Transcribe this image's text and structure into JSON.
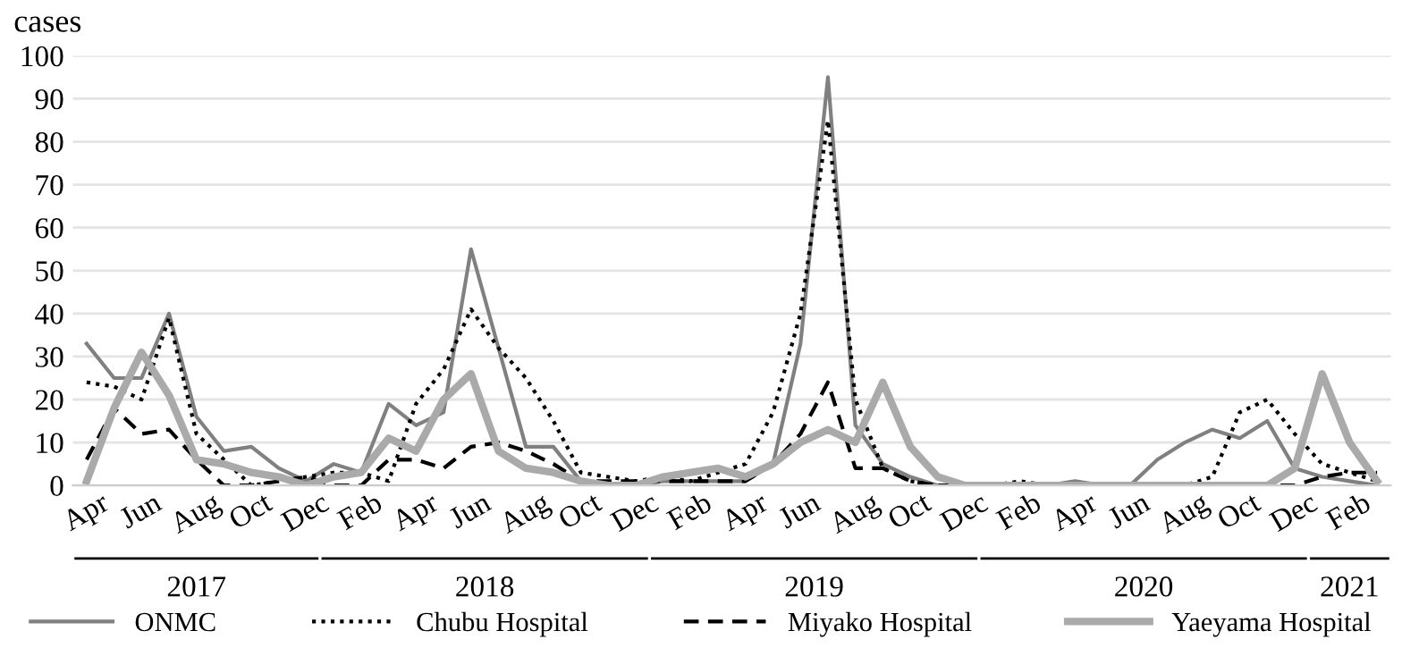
{
  "chart_data": {
    "type": "line",
    "ylabel": "cases",
    "categories": [
      "Apr",
      null,
      "Jun",
      null,
      "Aug",
      null,
      "Oct",
      null,
      "Dec",
      null,
      "Feb",
      null,
      "Apr",
      null,
      "Jun",
      null,
      "Aug",
      null,
      "Oct",
      null,
      "Dec",
      null,
      "Feb",
      null,
      "Apr",
      null,
      "Jun",
      null,
      "Aug",
      null,
      "Oct",
      null,
      "Dec",
      null,
      "Feb",
      null,
      "Apr",
      null,
      "Jun",
      null,
      "Aug",
      null,
      "Oct",
      null,
      "Dec",
      null,
      "Feb",
      null
    ],
    "series": [
      {
        "name": "ONMC",
        "color": "#808080",
        "line_style": "solid",
        "values": [
          33,
          25,
          25,
          40,
          16,
          8,
          9,
          4,
          1,
          5,
          3,
          19,
          14,
          17,
          55,
          32,
          9,
          9,
          1,
          0,
          0,
          1,
          1,
          1,
          1,
          5,
          33,
          95,
          14,
          5,
          2,
          0,
          0,
          0,
          0,
          0,
          1,
          0,
          0,
          6,
          10,
          13,
          11,
          15,
          4,
          2,
          1,
          0
        ]
      },
      {
        "name": "Chubu Hospital",
        "color": "#000000",
        "line_style": "dotted",
        "values": [
          24,
          23,
          20,
          39,
          12,
          6,
          0,
          1,
          2,
          3,
          3,
          1,
          19,
          27,
          41,
          32,
          25,
          15,
          3,
          2,
          1,
          2,
          1,
          3,
          5,
          17,
          40,
          85,
          20,
          4,
          1,
          0,
          0,
          0,
          1,
          0,
          0,
          0,
          0,
          0,
          0,
          2,
          17,
          20,
          12,
          5,
          3,
          1
        ]
      },
      {
        "name": "Miyako Hospital",
        "color": "#000000",
        "line_style": "dashed",
        "values": [
          6,
          18,
          12,
          13,
          6,
          0,
          0,
          1,
          2,
          0,
          0,
          6,
          6,
          4,
          9,
          10,
          8,
          5,
          1,
          1,
          1,
          1,
          1,
          1,
          1,
          5,
          12,
          24,
          4,
          4,
          1,
          0,
          0,
          0,
          0,
          0,
          0,
          0,
          0,
          0,
          0,
          0,
          0,
          0,
          0,
          2,
          3,
          3
        ]
      },
      {
        "name": "Yaeyama Hospital",
        "color": "#aaaaaa",
        "line_style": "solid",
        "values": [
          1,
          18,
          31,
          21,
          6,
          5,
          3,
          2,
          0,
          2,
          3,
          11,
          8,
          20,
          26,
          8,
          4,
          3,
          1,
          0,
          0,
          2,
          3,
          4,
          2,
          5,
          10,
          13,
          10,
          24,
          9,
          2,
          0,
          0,
          0,
          0,
          0,
          0,
          0,
          0,
          0,
          0,
          0,
          0,
          4,
          26,
          10,
          1
        ]
      }
    ],
    "annotations": [
      "2017",
      "2018",
      "2019",
      "2020",
      "2021"
    ],
    "ylim": [
      0,
      100
    ],
    "yticks": [
      0,
      10,
      20,
      30,
      40,
      50,
      60,
      70,
      80,
      90,
      100
    ],
    "grid": "y",
    "legend": "bottom",
    "marker": "none"
  }
}
